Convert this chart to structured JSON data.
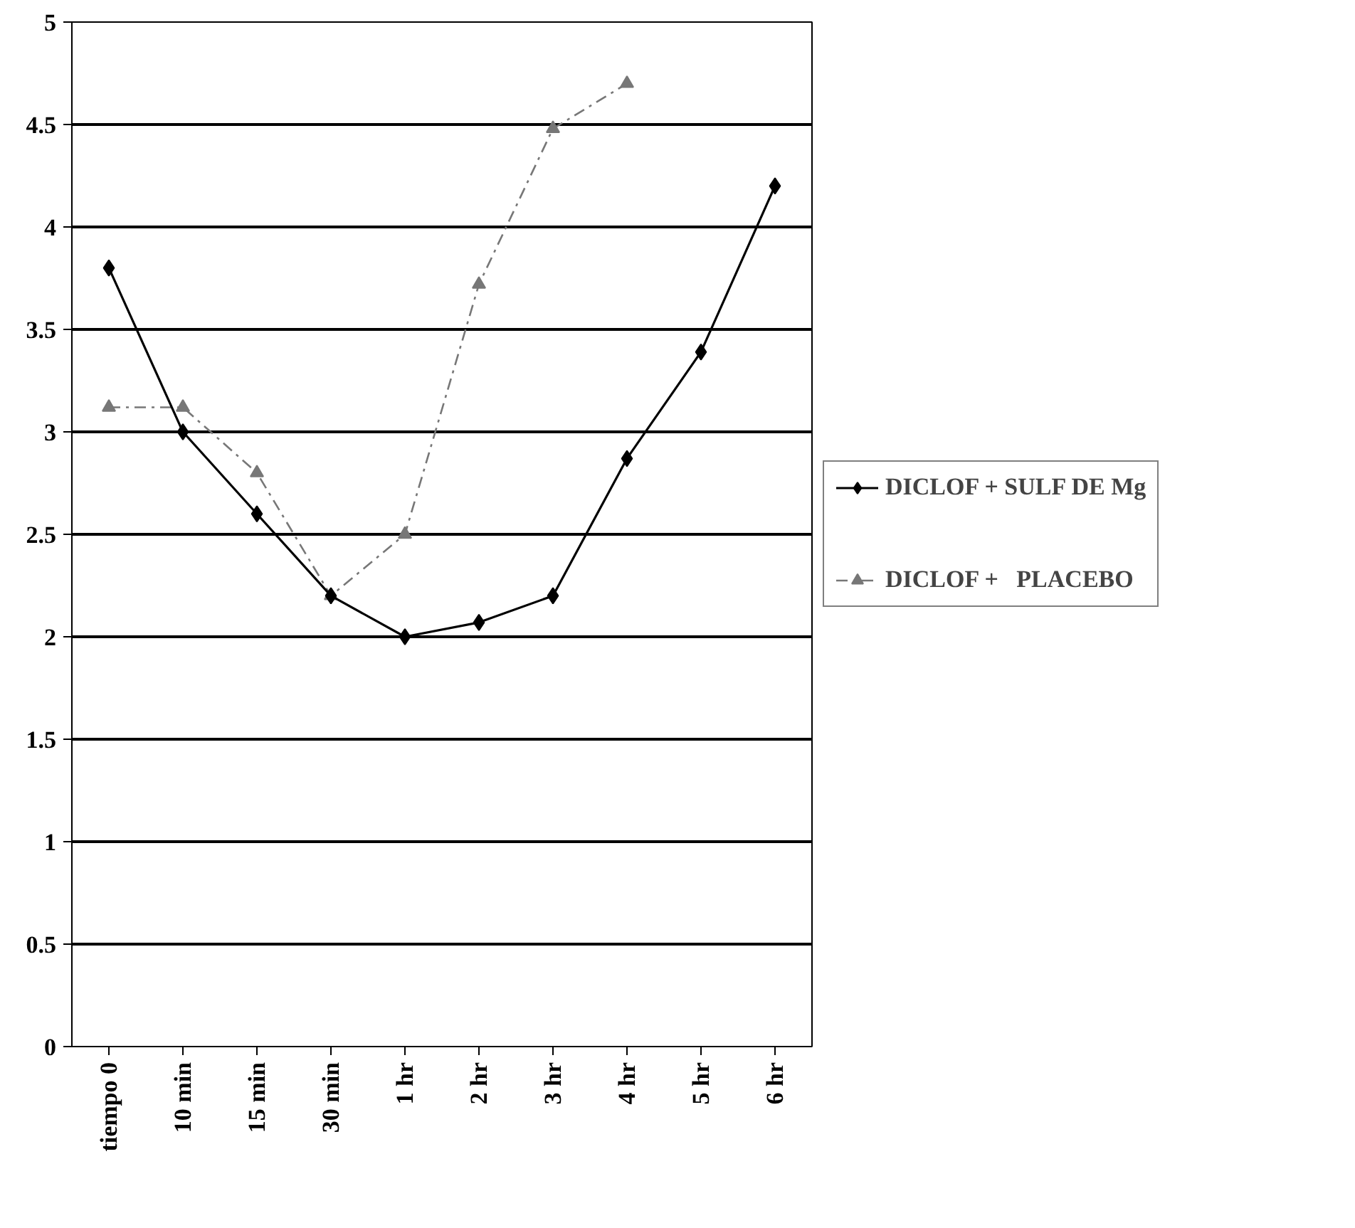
{
  "chart_data": {
    "type": "line",
    "categories": [
      "tiempo 0",
      "10 min",
      "15 min",
      "30 min",
      "1 hr",
      "2 hr",
      "3 hr",
      "4 hr",
      "5 hr",
      "6 hr"
    ],
    "series": [
      {
        "name": "DICLOF + SULF DE Mg",
        "color": "#000000",
        "marker": "diamond",
        "line_style": "solid",
        "values": [
          3.8,
          3.0,
          2.6,
          2.2,
          2.0,
          2.07,
          2.2,
          2.87,
          3.39,
          4.2
        ]
      },
      {
        "name": "DICLOF +   PLACEBO",
        "color": "#777777",
        "marker": "triangle",
        "line_style": "dashed",
        "values": [
          3.12,
          3.12,
          2.8,
          2.2,
          2.5,
          3.72,
          4.48,
          4.7,
          null,
          null
        ]
      }
    ],
    "ylim": [
      0,
      5
    ],
    "yticks": [
      0,
      0.5,
      1,
      1.5,
      2,
      2.5,
      3,
      3.5,
      4,
      4.5,
      5
    ],
    "grid": "y",
    "legend": "right"
  }
}
